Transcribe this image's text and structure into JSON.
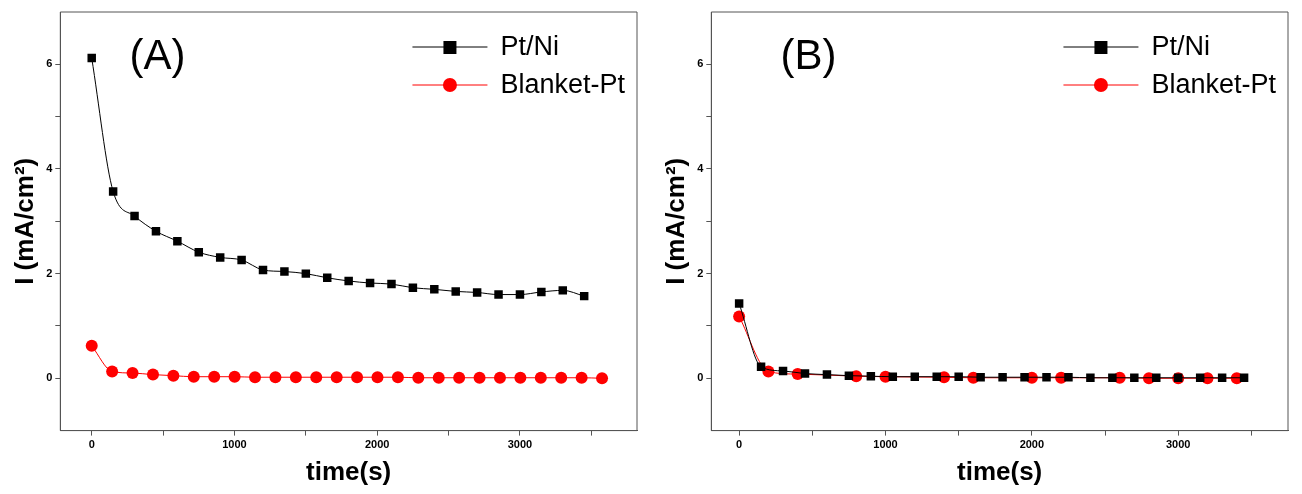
{
  "chart_data": [
    {
      "type": "line",
      "annotations": [
        "(A)"
      ],
      "xlabel": "time(s)",
      "ylabel": "I (mA/cm²)",
      "xlim": [
        -220,
        3820
      ],
      "ylim": [
        -1,
        7
      ],
      "xticks": [
        0,
        {
          "value": 500,
          "label": null
        },
        1000,
        {
          "value": 1500,
          "label": null
        },
        2000,
        {
          "value": 2500,
          "label": null
        },
        3000,
        {
          "value": 3500,
          "label": null
        }
      ],
      "yticks": [
        0,
        {
          "value": 1,
          "label": null
        },
        2,
        {
          "value": 3,
          "label": null
        },
        4,
        {
          "value": 5,
          "label": null
        },
        6
      ],
      "grid": false,
      "legend": "top right",
      "line_style": "solid",
      "series": [
        {
          "name": "Pt/Ni",
          "color": "#000000",
          "marker": "square",
          "x": [
            0,
            150,
            300,
            450,
            600,
            750,
            900,
            1050,
            1200,
            1350,
            1500,
            1650,
            1800,
            1950,
            2100,
            2250,
            2400,
            2550,
            2700,
            2850,
            3000,
            3150,
            3300,
            3450
          ],
          "values": [
            6.12,
            3.57,
            3.1,
            2.81,
            2.62,
            2.41,
            2.31,
            2.26,
            2.07,
            2.04,
            2.0,
            1.92,
            1.86,
            1.82,
            1.8,
            1.73,
            1.7,
            1.66,
            1.64,
            1.6,
            1.6,
            1.65,
            1.68,
            1.57
          ]
        },
        {
          "name": "Blanket-Pt",
          "color": "#ff0000",
          "marker": "circle",
          "x": [
            0,
            143,
            286,
            429,
            572,
            715,
            858,
            1001,
            1144,
            1287,
            1430,
            1573,
            1716,
            1859,
            2002,
            2145,
            2288,
            2431,
            2574,
            2717,
            2860,
            3003,
            3146,
            3289,
            3432,
            3575
          ],
          "values": [
            0.62,
            0.13,
            0.1,
            0.07,
            0.05,
            0.03,
            0.03,
            0.03,
            0.02,
            0.02,
            0.02,
            0.02,
            0.02,
            0.02,
            0.02,
            0.02,
            0.01,
            0.01,
            0.01,
            0.01,
            0.01,
            0.01,
            0.01,
            0.01,
            0.01,
            0.0
          ]
        }
      ]
    },
    {
      "type": "line",
      "annotations": [
        "(B)"
      ],
      "xlabel": "time(s)",
      "ylabel": "I (mA/cm²)",
      "xlim": [
        -190,
        3750
      ],
      "ylim": [
        -1,
        7
      ],
      "xticks": [
        0,
        {
          "value": 500,
          "label": null
        },
        1000,
        {
          "value": 1500,
          "label": null
        },
        2000,
        {
          "value": 2500,
          "label": null
        },
        3000,
        {
          "value": 3500,
          "label": null
        }
      ],
      "yticks": [
        0,
        {
          "value": 1,
          "label": null
        },
        2,
        {
          "value": 3,
          "label": null
        },
        4,
        {
          "value": 5,
          "label": null
        },
        6
      ],
      "grid": false,
      "legend": "top right",
      "line_style": "solid",
      "series": [
        {
          "name": "Pt/Ni",
          "color": "#000000",
          "marker": "square",
          "x": [
            0,
            150,
            300,
            450,
            600,
            750,
            900,
            1050,
            1200,
            1350,
            1500,
            1650,
            1800,
            1950,
            2100,
            2250,
            2400,
            2550,
            2700,
            2850,
            3000,
            3150,
            3300,
            3450
          ],
          "values": [
            1.43,
            0.22,
            0.14,
            0.09,
            0.07,
            0.05,
            0.04,
            0.03,
            0.03,
            0.03,
            0.03,
            0.02,
            0.02,
            0.02,
            0.02,
            0.02,
            0.01,
            0.01,
            0.01,
            0.01,
            0.01,
            0.01,
            0.01,
            0.01
          ]
        },
        {
          "name": "Blanket-Pt",
          "color": "#ff0000",
          "marker": "circle",
          "x": [
            0,
            200,
            400,
            600,
            800,
            1000,
            1200,
            1400,
            1600,
            1800,
            2000,
            2200,
            2400,
            2600,
            2800,
            3000,
            3200,
            3400
          ],
          "values": [
            1.18,
            0.13,
            0.08,
            null,
            0.04,
            0.03,
            null,
            0.02,
            0.01,
            null,
            0.01,
            0.01,
            null,
            0.01,
            0.0,
            0.0,
            0.0,
            0.0
          ]
        }
      ]
    }
  ]
}
